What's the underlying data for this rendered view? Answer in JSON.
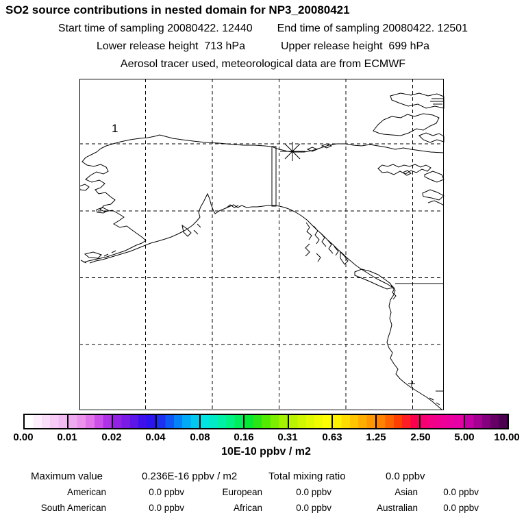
{
  "header": {
    "title": "SO2 source contributions in nested domain for NP3_20080421",
    "start_time_label": "Start time of sampling 20080422. 12440",
    "end_time_label": "End time of sampling 20080422. 12501",
    "lower_release_label": "Lower release height  713 hPa",
    "upper_release_label": "Upper release height  699 hPa",
    "tracer_line": "Aerosol tracer used, meteorological data are from ECMWF"
  },
  "map": {
    "domain_label": "1"
  },
  "colorbar": {
    "tick_labels": [
      "0.00",
      "0.01",
      "0.02",
      "0.04",
      "0.08",
      "0.16",
      "0.31",
      "0.63",
      "1.25",
      "2.50",
      "5.00",
      "10.00"
    ],
    "units_label": "10E-10 ppbv / m2",
    "segment_colors": [
      [
        "#ffffff",
        "#fceefc",
        "#f9ddf9",
        "#f6ccf6",
        "#f2bbf2"
      ],
      [
        "#eeaaee",
        "#ea92ec",
        "#e274ea",
        "#cc50e8",
        "#b032e6"
      ],
      [
        "#9422e4",
        "#7a1ce6",
        "#5c16e8",
        "#3e10ec",
        "#2a14f0"
      ],
      [
        "#1c30f2",
        "#0e58f6",
        "#0682f8",
        "#00a8f6",
        "#00c8ee"
      ],
      [
        "#00e4e4",
        "#00eac6",
        "#00f0a6",
        "#00f284",
        "#00ee5e"
      ],
      [
        "#04e836",
        "#2ae616",
        "#52ea00",
        "#7cee00",
        "#a4f200"
      ],
      [
        "#baf400",
        "#d0f600",
        "#e2fa00",
        "#f2fc00",
        "#fdff00"
      ],
      [
        "#fff200",
        "#ffdc00",
        "#ffc600",
        "#ffae00",
        "#ff9800"
      ],
      [
        "#ff8200",
        "#ff6200",
        "#ff4000",
        "#ff1e24",
        "#fa004e"
      ],
      [
        "#f60074",
        "#f20088",
        "#ee0096",
        "#ea00a0",
        "#e600a6"
      ],
      [
        "#c400a4",
        "#a40092",
        "#84007e",
        "#660066",
        "#4e0050"
      ]
    ]
  },
  "footer": {
    "max_label": "Maximum value",
    "max_value": "0.236E-16 ppbv / m2",
    "total_label": "Total mixing ratio",
    "total_value": "0.0 ppbv",
    "regions": [
      {
        "label": "American",
        "value": "0.0 ppbv"
      },
      {
        "label": "European",
        "value": "0.0 ppbv"
      },
      {
        "label": "Asian",
        "value": "0.0 ppbv"
      },
      {
        "label": "South American",
        "value": "0.0 ppbv"
      },
      {
        "label": "African",
        "value": "0.0 ppbv"
      },
      {
        "label": "Australian",
        "value": "0.0 ppbv"
      }
    ]
  },
  "chart_data": {
    "type": "heatmap",
    "title": "SO2 source contributions in nested domain for NP3_20080421",
    "subtitle": [
      "Start time of sampling 20080422. 12440   End time of sampling 20080422. 12501",
      "Lower release height  713 hPa   Upper release height  699 hPa",
      "Aerosol tracer used, meteorological data are from ECMWF"
    ],
    "colorbar_units": "10E-10 ppbv / m2",
    "colorbar_levels": [
      0.0,
      0.01,
      0.02,
      0.04,
      0.08,
      0.16,
      0.31,
      0.63,
      1.25,
      2.5,
      5.0,
      10.0
    ],
    "field_max_value": "0.236E-16 ppbv / m2",
    "total_mixing_ratio": "0.0 ppbv",
    "series": [
      {
        "name": "American",
        "values": [
          0.0
        ]
      },
      {
        "name": "European",
        "values": [
          0.0
        ]
      },
      {
        "name": "Asian",
        "values": [
          0.0
        ]
      },
      {
        "name": "South American",
        "values": [
          0.0
        ]
      },
      {
        "name": "African",
        "values": [
          0.0
        ]
      },
      {
        "name": "Australian",
        "values": [
          0.0
        ]
      }
    ],
    "annotations": [
      "nest domain label 1",
      "release box and star marker on Alaska north coast"
    ],
    "layout": {
      "grid": "dashed lat-lon grid, 5 vertical x 4 horizontal lines",
      "legend_position": "horizontal colorbar below map"
    }
  }
}
